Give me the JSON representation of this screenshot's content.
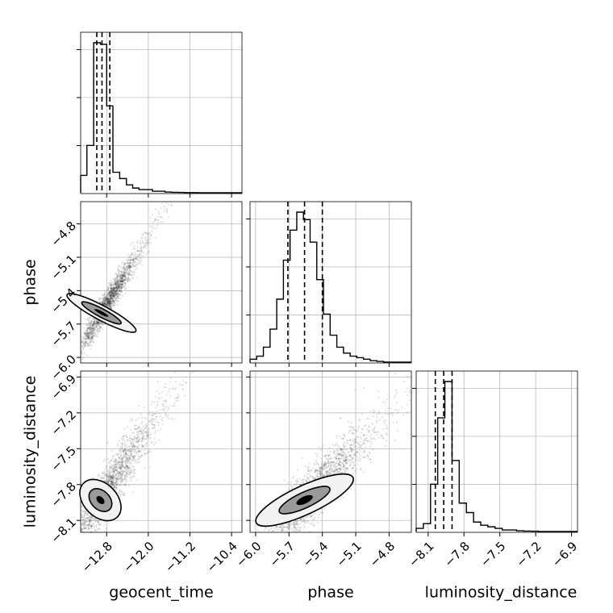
{
  "chart_data": {
    "type": "corner",
    "grid": true,
    "parameters": [
      {
        "name": "geocent_time",
        "range": [
          -13.3,
          -10.2
        ],
        "ticks": [
          "-12.8",
          "-12.0",
          "-11.2",
          "-10.4"
        ],
        "tick_values": [
          -12.8,
          -12.0,
          -11.2,
          -10.4
        ],
        "quantiles": [
          -12.99,
          -12.89,
          -12.74
        ]
      },
      {
        "name": "phase",
        "range": [
          -6.05,
          -4.6
        ],
        "ticks": [
          "-6.0",
          "-5.7",
          "-5.4",
          "-5.1",
          "-4.8"
        ],
        "tick_values": [
          -6.0,
          -5.7,
          -5.4,
          -5.1,
          -4.8
        ],
        "quantiles": [
          -5.71,
          -5.56,
          -5.4
        ]
      },
      {
        "name": "luminosity_distance",
        "range": [
          -8.2,
          -6.85
        ],
        "ticks": [
          "-8.1",
          "-7.8",
          "-7.5",
          "-7.2",
          "-6.9"
        ],
        "tick_values": [
          -8.1,
          -7.8,
          -7.5,
          -7.2,
          -6.9
        ],
        "quantiles": [
          -8.04,
          -7.97,
          -7.9
        ]
      }
    ],
    "histograms": [
      {
        "parameter": "geocent_time",
        "bin_edges": [
          -13.3,
          -13.18,
          -13.05,
          -12.92,
          -12.8,
          -12.68,
          -12.55,
          -12.42,
          -12.3,
          -12.18,
          -12.05,
          -11.92,
          -11.8,
          -11.68,
          -11.55,
          -11.42,
          -11.3,
          -11.18,
          -11.05,
          -10.92,
          -10.8,
          -10.68,
          -10.55,
          -10.42,
          -10.3,
          -10.2
        ],
        "counts": [
          0.11,
          0.3,
          0.95,
          0.94,
          0.55,
          0.13,
          0.09,
          0.05,
          0.03,
          0.02,
          0.02,
          0.01,
          0.01,
          0.005,
          0.003,
          0.002,
          0.001,
          0.001,
          0,
          0,
          0,
          0,
          0,
          0,
          0
        ]
      },
      {
        "parameter": "phase",
        "bin_edges": [
          -6.05,
          -5.99,
          -5.93,
          -5.87,
          -5.81,
          -5.75,
          -5.69,
          -5.63,
          -5.57,
          -5.51,
          -5.45,
          -5.39,
          -5.33,
          -5.27,
          -5.21,
          -5.15,
          -5.09,
          -5.03,
          -4.97,
          -4.91,
          -4.85,
          -4.79,
          -4.73,
          -4.67,
          -4.6
        ],
        "counts": [
          0.02,
          0.04,
          0.1,
          0.22,
          0.42,
          0.68,
          0.88,
          1.0,
          0.95,
          0.8,
          0.55,
          0.32,
          0.18,
          0.1,
          0.06,
          0.04,
          0.03,
          0.02,
          0.01,
          0.005,
          0,
          0,
          0,
          0
        ]
      },
      {
        "parameter": "luminosity_distance",
        "bin_edges": [
          -8.2,
          -8.14,
          -8.08,
          -8.02,
          -7.96,
          -7.9,
          -7.84,
          -7.78,
          -7.72,
          -7.66,
          -7.6,
          -7.54,
          -7.48,
          -7.42,
          -7.36,
          -7.3,
          -7.24,
          -7.18,
          -7.12,
          -7.06,
          -7.0,
          -6.94,
          -6.88,
          -6.85
        ],
        "counts": [
          0.02,
          0.05,
          0.3,
          0.72,
          0.95,
          0.45,
          0.18,
          0.12,
          0.06,
          0.04,
          0.03,
          0.02,
          0.01,
          0.01,
          0.005,
          0.003,
          0.002,
          0,
          0,
          0,
          0,
          0,
          0
        ]
      }
    ],
    "scatter_panels": [
      {
        "x": "geocent_time",
        "y": "phase",
        "center": [
          -12.9,
          -5.6
        ],
        "std": [
          0.25,
          0.2
        ],
        "correlation": 0.95,
        "contour_levels": [
          {
            "rx": 0.14,
            "ry": 0.35,
            "angle_deg": 62,
            "fill": "#f2f2f2"
          },
          {
            "rx": 0.08,
            "ry": 0.2,
            "angle_deg": 62,
            "fill": "#9a9a9a"
          },
          {
            "rx": 0.03,
            "ry": 0.07,
            "angle_deg": 62,
            "fill": "#000000"
          }
        ]
      },
      {
        "x": "geocent_time",
        "y": "luminosity_distance",
        "center": [
          -12.92,
          -7.93
        ],
        "std": [
          0.35,
          0.25
        ],
        "correlation": 0.9,
        "contour_levels": [
          {
            "rx": 0.32,
            "ry": 0.2,
            "angle_deg": 45,
            "fill": "#f2f2f2"
          },
          {
            "rx": 0.18,
            "ry": 0.11,
            "angle_deg": 45,
            "fill": "#9a9a9a"
          },
          {
            "rx": 0.06,
            "ry": 0.04,
            "angle_deg": 45,
            "fill": "#000000"
          }
        ]
      },
      {
        "x": "phase",
        "y": "luminosity_distance",
        "center": [
          -5.56,
          -7.93
        ],
        "std": [
          0.2,
          0.22
        ],
        "correlation": 0.85,
        "contour_levels": [
          {
            "rx": 0.48,
            "ry": 0.12,
            "angle_deg": 25,
            "fill": "#f2f2f2"
          },
          {
            "rx": 0.25,
            "ry": 0.065,
            "angle_deg": 25,
            "fill": "#9a9a9a"
          },
          {
            "rx": 0.08,
            "ry": 0.03,
            "angle_deg": 25,
            "fill": "#000000"
          }
        ]
      }
    ],
    "colors": {
      "line": "#000000",
      "grid": "#b0b0b0",
      "points": "#000000"
    }
  }
}
